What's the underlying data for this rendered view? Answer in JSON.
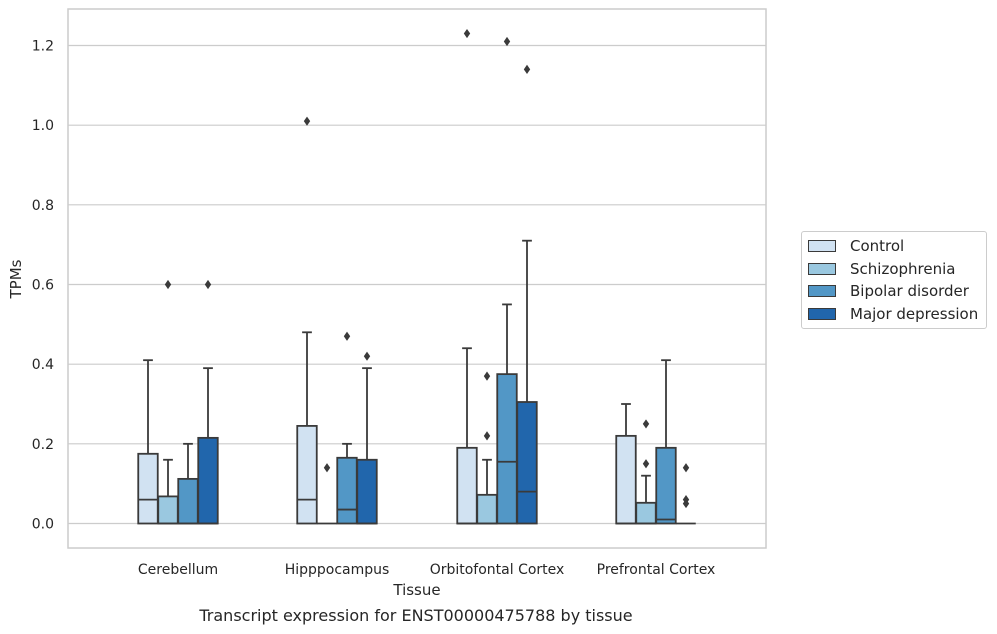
{
  "chart_data": {
    "type": "box",
    "title": "",
    "caption": "Transcript expression for ENST00000475788 by tissue",
    "xlabel": "Tissue",
    "ylabel": "TPMs",
    "ylim": [
      -0.06,
      1.29
    ],
    "yticks": [
      "0.0",
      "0.2",
      "0.4",
      "0.6",
      "0.8",
      "1.0",
      "1.2"
    ],
    "ytick_values": [
      0.0,
      0.2,
      0.4,
      0.6,
      0.8,
      1.0,
      1.2
    ],
    "grid": "horizontal",
    "legend_position": "right",
    "categories": [
      "Cerebellum",
      "Hipppocampus",
      "Orbitofontal Cortex",
      "Prefrontal Cortex"
    ],
    "series": [
      {
        "name": "Control",
        "color": "#d1e2f2",
        "boxes": [
          {
            "q1": 0.0,
            "median": 0.06,
            "q3": 0.175,
            "whisker_low": 0.0,
            "whisker_high": 0.41,
            "outliers": []
          },
          {
            "q1": 0.0,
            "median": 0.06,
            "q3": 0.245,
            "whisker_low": 0.0,
            "whisker_high": 0.48,
            "outliers": [
              1.01
            ]
          },
          {
            "q1": 0.0,
            "median": 0.0,
            "q3": 0.19,
            "whisker_low": 0.0,
            "whisker_high": 0.44,
            "outliers": [
              1.23
            ]
          },
          {
            "q1": 0.0,
            "median": 0.0,
            "q3": 0.22,
            "whisker_low": 0.0,
            "whisker_high": 0.3,
            "outliers": []
          }
        ]
      },
      {
        "name": "Schizophrenia",
        "color": "#9ac8e0",
        "boxes": [
          {
            "q1": 0.0,
            "median": 0.0,
            "q3": 0.068,
            "whisker_low": 0.0,
            "whisker_high": 0.16,
            "outliers": [
              0.6
            ]
          },
          {
            "q1": 0.0,
            "median": 0.0,
            "q3": 0.0,
            "whisker_low": 0.0,
            "whisker_high": 0.0,
            "outliers": [
              0.14
            ]
          },
          {
            "q1": 0.0,
            "median": 0.0,
            "q3": 0.072,
            "whisker_low": 0.0,
            "whisker_high": 0.16,
            "outliers": [
              0.22,
              0.37
            ]
          },
          {
            "q1": 0.0,
            "median": 0.0,
            "q3": 0.052,
            "whisker_low": 0.0,
            "whisker_high": 0.12,
            "outliers": [
              0.15,
              0.25
            ]
          }
        ]
      },
      {
        "name": "Bipolar disorder",
        "color": "#5297c6",
        "boxes": [
          {
            "q1": 0.0,
            "median": 0.0,
            "q3": 0.112,
            "whisker_low": 0.0,
            "whisker_high": 0.2,
            "outliers": []
          },
          {
            "q1": 0.0,
            "median": 0.035,
            "q3": 0.165,
            "whisker_low": 0.0,
            "whisker_high": 0.2,
            "outliers": [
              0.47
            ]
          },
          {
            "q1": 0.0,
            "median": 0.155,
            "q3": 0.375,
            "whisker_low": 0.0,
            "whisker_high": 0.55,
            "outliers": [
              1.21
            ]
          },
          {
            "q1": 0.0,
            "median": 0.01,
            "q3": 0.19,
            "whisker_low": 0.0,
            "whisker_high": 0.41,
            "outliers": []
          }
        ]
      },
      {
        "name": "Major depression",
        "color": "#2166ac",
        "boxes": [
          {
            "q1": 0.0,
            "median": 0.0,
            "q3": 0.215,
            "whisker_low": 0.0,
            "whisker_high": 0.39,
            "outliers": [
              0.6
            ]
          },
          {
            "q1": 0.0,
            "median": 0.0,
            "q3": 0.16,
            "whisker_low": 0.0,
            "whisker_high": 0.39,
            "outliers": [
              0.42
            ]
          },
          {
            "q1": 0.0,
            "median": 0.08,
            "q3": 0.305,
            "whisker_low": 0.0,
            "whisker_high": 0.71,
            "outliers": [
              1.14
            ]
          },
          {
            "q1": 0.0,
            "median": 0.0,
            "q3": 0.0,
            "whisker_low": 0.0,
            "whisker_high": 0.0,
            "outliers": [
              0.05,
              0.06,
              0.14
            ]
          }
        ]
      }
    ]
  }
}
